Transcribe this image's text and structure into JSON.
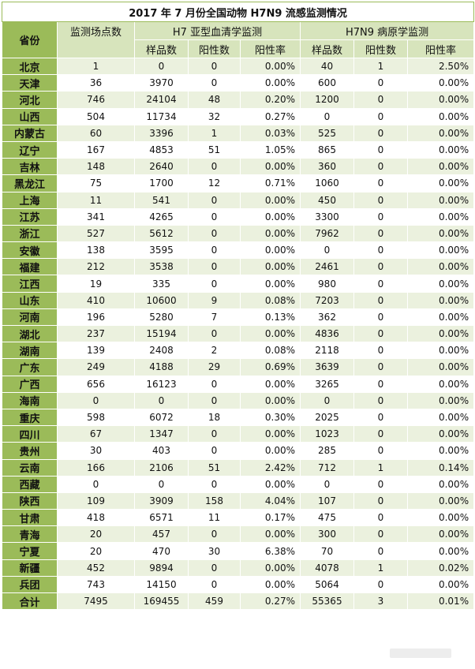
{
  "title": "2017 年 7 月份全国动物 H7N9 流感监测情况",
  "headers": {
    "province": "省份",
    "sites": "监测场点数",
    "h7_group": "H7 亚型血清学监测",
    "h7n9_group": "H7N9 病原学监测",
    "samples": "样品数",
    "positives": "阳性数",
    "rate": "阳性率"
  },
  "rows": [
    {
      "province": "北京",
      "sites": "1",
      "h7_samples": "0",
      "h7_pos": "0",
      "h7_rate": "0.00%",
      "n9_samples": "40",
      "n9_pos": "1",
      "n9_rate": "2.50%"
    },
    {
      "province": "天津",
      "sites": "36",
      "h7_samples": "3970",
      "h7_pos": "0",
      "h7_rate": "0.00%",
      "n9_samples": "600",
      "n9_pos": "0",
      "n9_rate": "0.00%"
    },
    {
      "province": "河北",
      "sites": "746",
      "h7_samples": "24104",
      "h7_pos": "48",
      "h7_rate": "0.20%",
      "n9_samples": "1200",
      "n9_pos": "0",
      "n9_rate": "0.00%"
    },
    {
      "province": "山西",
      "sites": "504",
      "h7_samples": "11734",
      "h7_pos": "32",
      "h7_rate": "0.27%",
      "n9_samples": "0",
      "n9_pos": "0",
      "n9_rate": "0.00%"
    },
    {
      "province": "内蒙古",
      "sites": "60",
      "h7_samples": "3396",
      "h7_pos": "1",
      "h7_rate": "0.03%",
      "n9_samples": "525",
      "n9_pos": "0",
      "n9_rate": "0.00%"
    },
    {
      "province": "辽宁",
      "sites": "167",
      "h7_samples": "4853",
      "h7_pos": "51",
      "h7_rate": "1.05%",
      "n9_samples": "865",
      "n9_pos": "0",
      "n9_rate": "0.00%"
    },
    {
      "province": "吉林",
      "sites": "148",
      "h7_samples": "2640",
      "h7_pos": "0",
      "h7_rate": "0.00%",
      "n9_samples": "360",
      "n9_pos": "0",
      "n9_rate": "0.00%"
    },
    {
      "province": "黑龙江",
      "sites": "75",
      "h7_samples": "1700",
      "h7_pos": "12",
      "h7_rate": "0.71%",
      "n9_samples": "1060",
      "n9_pos": "0",
      "n9_rate": "0.00%"
    },
    {
      "province": "上海",
      "sites": "11",
      "h7_samples": "541",
      "h7_pos": "0",
      "h7_rate": "0.00%",
      "n9_samples": "450",
      "n9_pos": "0",
      "n9_rate": "0.00%"
    },
    {
      "province": "江苏",
      "sites": "341",
      "h7_samples": "4265",
      "h7_pos": "0",
      "h7_rate": "0.00%",
      "n9_samples": "3300",
      "n9_pos": "0",
      "n9_rate": "0.00%"
    },
    {
      "province": "浙江",
      "sites": "527",
      "h7_samples": "5612",
      "h7_pos": "0",
      "h7_rate": "0.00%",
      "n9_samples": "7962",
      "n9_pos": "0",
      "n9_rate": "0.00%"
    },
    {
      "province": "安徽",
      "sites": "138",
      "h7_samples": "3595",
      "h7_pos": "0",
      "h7_rate": "0.00%",
      "n9_samples": "0",
      "n9_pos": "0",
      "n9_rate": "0.00%"
    },
    {
      "province": "福建",
      "sites": "212",
      "h7_samples": "3538",
      "h7_pos": "0",
      "h7_rate": "0.00%",
      "n9_samples": "2461",
      "n9_pos": "0",
      "n9_rate": "0.00%"
    },
    {
      "province": "江西",
      "sites": "19",
      "h7_samples": "335",
      "h7_pos": "0",
      "h7_rate": "0.00%",
      "n9_samples": "980",
      "n9_pos": "0",
      "n9_rate": "0.00%"
    },
    {
      "province": "山东",
      "sites": "410",
      "h7_samples": "10600",
      "h7_pos": "9",
      "h7_rate": "0.08%",
      "n9_samples": "7203",
      "n9_pos": "0",
      "n9_rate": "0.00%"
    },
    {
      "province": "河南",
      "sites": "196",
      "h7_samples": "5280",
      "h7_pos": "7",
      "h7_rate": "0.13%",
      "n9_samples": "362",
      "n9_pos": "0",
      "n9_rate": "0.00%"
    },
    {
      "province": "湖北",
      "sites": "237",
      "h7_samples": "15194",
      "h7_pos": "0",
      "h7_rate": "0.00%",
      "n9_samples": "4836",
      "n9_pos": "0",
      "n9_rate": "0.00%"
    },
    {
      "province": "湖南",
      "sites": "139",
      "h7_samples": "2408",
      "h7_pos": "2",
      "h7_rate": "0.08%",
      "n9_samples": "2118",
      "n9_pos": "0",
      "n9_rate": "0.00%"
    },
    {
      "province": "广东",
      "sites": "249",
      "h7_samples": "4188",
      "h7_pos": "29",
      "h7_rate": "0.69%",
      "n9_samples": "3639",
      "n9_pos": "0",
      "n9_rate": "0.00%"
    },
    {
      "province": "广西",
      "sites": "656",
      "h7_samples": "16123",
      "h7_pos": "0",
      "h7_rate": "0.00%",
      "n9_samples": "3265",
      "n9_pos": "0",
      "n9_rate": "0.00%"
    },
    {
      "province": "海南",
      "sites": "0",
      "h7_samples": "0",
      "h7_pos": "0",
      "h7_rate": "0.00%",
      "n9_samples": "0",
      "n9_pos": "0",
      "n9_rate": "0.00%"
    },
    {
      "province": "重庆",
      "sites": "598",
      "h7_samples": "6072",
      "h7_pos": "18",
      "h7_rate": "0.30%",
      "n9_samples": "2025",
      "n9_pos": "0",
      "n9_rate": "0.00%"
    },
    {
      "province": "四川",
      "sites": "67",
      "h7_samples": "1347",
      "h7_pos": "0",
      "h7_rate": "0.00%",
      "n9_samples": "1023",
      "n9_pos": "0",
      "n9_rate": "0.00%"
    },
    {
      "province": "贵州",
      "sites": "30",
      "h7_samples": "403",
      "h7_pos": "0",
      "h7_rate": "0.00%",
      "n9_samples": "285",
      "n9_pos": "0",
      "n9_rate": "0.00%"
    },
    {
      "province": "云南",
      "sites": "166",
      "h7_samples": "2106",
      "h7_pos": "51",
      "h7_rate": "2.42%",
      "n9_samples": "712",
      "n9_pos": "1",
      "n9_rate": "0.14%"
    },
    {
      "province": "西藏",
      "sites": "0",
      "h7_samples": "0",
      "h7_pos": "0",
      "h7_rate": "0.00%",
      "n9_samples": "0",
      "n9_pos": "0",
      "n9_rate": "0.00%"
    },
    {
      "province": "陕西",
      "sites": "109",
      "h7_samples": "3909",
      "h7_pos": "158",
      "h7_rate": "4.04%",
      "n9_samples": "107",
      "n9_pos": "0",
      "n9_rate": "0.00%"
    },
    {
      "province": "甘肃",
      "sites": "418",
      "h7_samples": "6571",
      "h7_pos": "11",
      "h7_rate": "0.17%",
      "n9_samples": "475",
      "n9_pos": "0",
      "n9_rate": "0.00%"
    },
    {
      "province": "青海",
      "sites": "20",
      "h7_samples": "457",
      "h7_pos": "0",
      "h7_rate": "0.00%",
      "n9_samples": "300",
      "n9_pos": "0",
      "n9_rate": "0.00%"
    },
    {
      "province": "宁夏",
      "sites": "20",
      "h7_samples": "470",
      "h7_pos": "30",
      "h7_rate": "6.38%",
      "n9_samples": "70",
      "n9_pos": "0",
      "n9_rate": "0.00%"
    },
    {
      "province": "新疆",
      "sites": "452",
      "h7_samples": "9894",
      "h7_pos": "0",
      "h7_rate": "0.00%",
      "n9_samples": "4078",
      "n9_pos": "1",
      "n9_rate": "0.02%"
    },
    {
      "province": "兵团",
      "sites": "743",
      "h7_samples": "14150",
      "h7_pos": "0",
      "h7_rate": "0.00%",
      "n9_samples": "5064",
      "n9_pos": "0",
      "n9_rate": "0.00%"
    }
  ],
  "total": {
    "province": "合计",
    "sites": "7495",
    "h7_samples": "169455",
    "h7_pos": "459",
    "h7_rate": "0.27%",
    "n9_samples": "55365",
    "n9_pos": "3",
    "n9_rate": "0.01%"
  }
}
